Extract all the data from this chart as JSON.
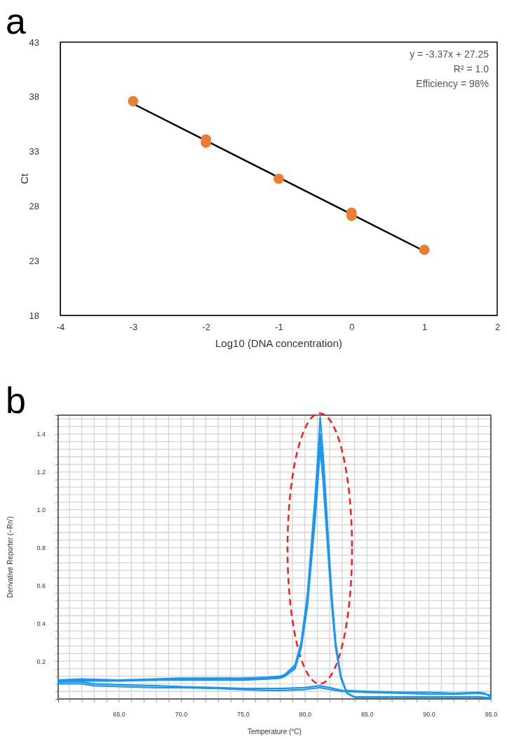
{
  "chart_data": [
    {
      "type": "scatter",
      "title": "a",
      "xlabel": "Log10 (DNA concentration)",
      "ylabel": "Ct",
      "xlim": [
        -4,
        2
      ],
      "xticks": [
        -4,
        -3,
        -2,
        -1,
        0,
        1,
        2
      ],
      "ylim": [
        18,
        43
      ],
      "yticks": [
        18,
        23,
        28,
        33,
        38,
        43
      ],
      "annotations": [
        "y = -3.37x + 27.25",
        "R² = 1.0",
        "Efficiency = 98%"
      ],
      "series": [
        {
          "marker": "circle",
          "color": "#ed7d31",
          "x": [
            -3,
            -2,
            -2,
            -1,
            0,
            0,
            1
          ],
          "values": [
            37.6,
            34.1,
            33.8,
            30.5,
            27.4,
            27.1,
            24.0
          ]
        },
        {
          "type": "line",
          "marker": "none",
          "color": "#000000",
          "x": [
            -3,
            1
          ],
          "values": [
            37.36,
            23.88
          ]
        }
      ]
    },
    {
      "type": "line",
      "title": "b",
      "xlabel": "Temperature (°C)",
      "ylabel": "Derivative Reporter (−Rn′)",
      "grid": true,
      "xlim": [
        60.1,
        95
      ],
      "xticks": [
        {
          "value": 61,
          "label": null
        },
        {
          "value": 62,
          "label": null
        },
        {
          "value": 63,
          "label": null
        },
        {
          "value": 64,
          "label": null
        },
        {
          "value": 65,
          "label": "65.0"
        },
        {
          "value": 66,
          "label": null
        },
        {
          "value": 67,
          "label": null
        },
        {
          "value": 68,
          "label": null
        },
        {
          "value": 69,
          "label": null
        },
        {
          "value": 70,
          "label": "70.0"
        },
        {
          "value": 71,
          "label": null
        },
        {
          "value": 72,
          "label": null
        },
        {
          "value": 73,
          "label": null
        },
        {
          "value": 74,
          "label": null
        },
        {
          "value": 75,
          "label": "75.0"
        },
        {
          "value": 76,
          "label": null
        },
        {
          "value": 77,
          "label": null
        },
        {
          "value": 78,
          "label": null
        },
        {
          "value": 79,
          "label": null
        },
        {
          "value": 80,
          "label": "80.0"
        },
        {
          "value": 81,
          "label": null
        },
        {
          "value": 82,
          "label": null
        },
        {
          "value": 83,
          "label": null
        },
        {
          "value": 84,
          "label": null
        },
        {
          "value": 85,
          "label": "85.0"
        },
        {
          "value": 86,
          "label": null
        },
        {
          "value": 87,
          "label": null
        },
        {
          "value": 88,
          "label": null
        },
        {
          "value": 89,
          "label": null
        },
        {
          "value": 90,
          "label": "90.0"
        },
        {
          "value": 91,
          "label": null
        },
        {
          "value": 92,
          "label": null
        },
        {
          "value": 93,
          "label": null
        },
        {
          "value": 94,
          "label": null
        },
        {
          "value": 95,
          "label": "95.0"
        }
      ],
      "ylim": [
        0,
        1.5
      ],
      "yticks": [
        {
          "value": 0.04,
          "label": null
        },
        {
          "value": 0.08,
          "label": null
        },
        {
          "value": 0.12,
          "label": null
        },
        {
          "value": 0.16,
          "label": null
        },
        {
          "value": 0.2,
          "label": "0.2"
        },
        {
          "value": 0.24,
          "label": null
        },
        {
          "value": 0.28,
          "label": null
        },
        {
          "value": 0.32,
          "label": null
        },
        {
          "value": 0.36,
          "label": null
        },
        {
          "value": 0.4,
          "label": "0.4"
        },
        {
          "value": 0.44,
          "label": null
        },
        {
          "value": 0.48,
          "label": null
        },
        {
          "value": 0.52,
          "label": null
        },
        {
          "value": 0.56,
          "label": null
        },
        {
          "value": 0.6,
          "label": "0.6"
        },
        {
          "value": 0.64,
          "label": null
        },
        {
          "value": 0.68,
          "label": null
        },
        {
          "value": 0.72,
          "label": null
        },
        {
          "value": 0.76,
          "label": null
        },
        {
          "value": 0.8,
          "label": "0.8"
        },
        {
          "value": 0.84,
          "label": null
        },
        {
          "value": 0.88,
          "label": null
        },
        {
          "value": 0.92,
          "label": null
        },
        {
          "value": 0.96,
          "label": null
        },
        {
          "value": 1.0,
          "label": "1.0"
        },
        {
          "value": 1.04,
          "label": null
        },
        {
          "value": 1.08,
          "label": null
        },
        {
          "value": 1.12,
          "label": null
        },
        {
          "value": 1.16,
          "label": null
        },
        {
          "value": 1.2,
          "label": "1.2"
        },
        {
          "value": 1.24,
          "label": null
        },
        {
          "value": 1.28,
          "label": null
        },
        {
          "value": 1.32,
          "label": null
        },
        {
          "value": 1.36,
          "label": null
        },
        {
          "value": 1.4,
          "label": "1.4"
        },
        {
          "value": 1.44,
          "label": null
        },
        {
          "value": 1.48,
          "label": null
        }
      ],
      "series": [
        {
          "color": "#1a98f0",
          "x": [
            60.1,
            62,
            65,
            68,
            70,
            72,
            75,
            77,
            78,
            78.4,
            79.2,
            79.7,
            80.2,
            80.5,
            80.8,
            81.05,
            81.23,
            81.47,
            81.7,
            81.93,
            82.17,
            82.48,
            82.9,
            83.4,
            84,
            86,
            88,
            90,
            92,
            94,
            95
          ],
          "values": [
            0.1,
            0.105,
            0.1,
            0.105,
            0.11,
            0.11,
            0.11,
            0.115,
            0.12,
            0.13,
            0.18,
            0.3,
            0.55,
            0.8,
            1.05,
            1.29,
            1.49,
            1.29,
            1.05,
            0.8,
            0.55,
            0.3,
            0.12,
            0.03,
            0.01,
            0.01,
            0.01,
            0.01,
            0.01,
            0.01,
            0.005
          ]
        },
        {
          "color": "#1a98f0",
          "x": [
            60.1,
            62,
            65,
            68,
            70,
            72,
            75,
            77,
            78,
            78.4,
            79.2,
            79.7,
            80.2,
            80.5,
            80.8,
            81.05,
            81.23,
            81.47,
            81.7,
            81.93,
            82.17,
            82.48,
            82.9,
            83.4,
            84,
            86,
            88,
            90,
            92,
            94,
            95
          ],
          "values": [
            0.095,
            0.1,
            0.1,
            0.1,
            0.105,
            0.105,
            0.105,
            0.11,
            0.115,
            0.125,
            0.17,
            0.28,
            0.51,
            0.75,
            0.98,
            1.21,
            1.4,
            1.21,
            0.98,
            0.75,
            0.51,
            0.28,
            0.11,
            0.03,
            0.01,
            0.01,
            0.01,
            0.01,
            0.01,
            0.01,
            0.005
          ]
        },
        {
          "color": "#1a98f0",
          "x": [
            60.1,
            62,
            65,
            68,
            70,
            72,
            75,
            77,
            78,
            78.4,
            79.2,
            79.7,
            80.2,
            80.5,
            80.8,
            81.05,
            81.23,
            81.47,
            81.7,
            81.93,
            82.17,
            82.48,
            82.9,
            83.4,
            84,
            86,
            88,
            90,
            92,
            94,
            95
          ],
          "values": [
            0.09,
            0.095,
            0.095,
            0.1,
            0.1,
            0.1,
            0.1,
            0.105,
            0.11,
            0.12,
            0.16,
            0.27,
            0.49,
            0.71,
            0.93,
            1.15,
            1.33,
            1.15,
            0.93,
            0.71,
            0.49,
            0.27,
            0.11,
            0.03,
            0.01,
            0.01,
            0.01,
            0.01,
            0.01,
            0.01,
            0.005
          ]
        },
        {
          "color": "#1a98f0",
          "x": [
            60.1,
            62,
            63,
            65,
            68,
            70,
            73,
            75,
            77,
            78,
            80,
            81.2,
            82,
            83,
            85,
            88,
            90,
            92,
            94,
            94.5,
            95
          ],
          "values": [
            0.09,
            0.09,
            0.08,
            0.075,
            0.07,
            0.065,
            0.06,
            0.055,
            0.055,
            0.055,
            0.06,
            0.07,
            0.06,
            0.045,
            0.04,
            0.035,
            0.035,
            0.03,
            0.035,
            0.03,
            0.01
          ]
        },
        {
          "color": "#1a98f0",
          "x": [
            60.1,
            62,
            63,
            65,
            68,
            70,
            73,
            75,
            77,
            78,
            80,
            81.2,
            82,
            83,
            85,
            88,
            90,
            92,
            94,
            94.5,
            95
          ],
          "values": [
            0.08,
            0.08,
            0.07,
            0.065,
            0.06,
            0.06,
            0.055,
            0.05,
            0.045,
            0.045,
            0.05,
            0.06,
            0.05,
            0.04,
            0.035,
            0.03,
            0.025,
            0.025,
            0.03,
            0.025,
            0.02
          ]
        }
      ]
    }
  ]
}
